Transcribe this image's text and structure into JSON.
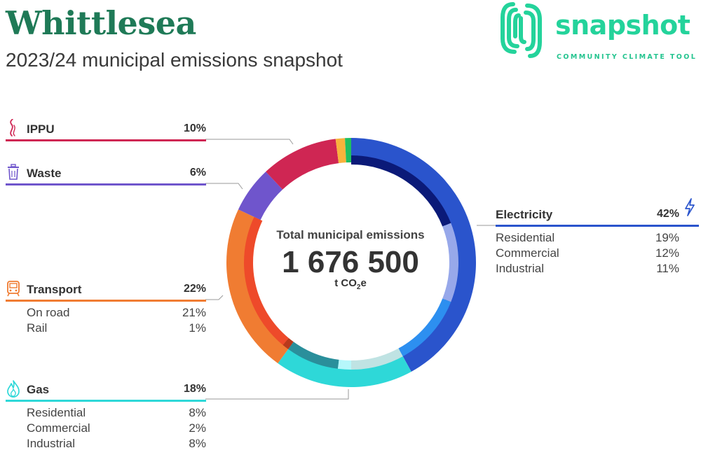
{
  "header": {
    "title": "Whittlesea",
    "subtitle": "2023/24 municipal emissions snapshot"
  },
  "logo": {
    "wordmark": "snapshot",
    "tagline": "COMMUNITY CLIMATE TOOL"
  },
  "center": {
    "label": "Total municipal emissions",
    "value": "1 676 500",
    "unit_prefix": "t CO",
    "unit_sub": "2",
    "unit_suffix": "e"
  },
  "categories": {
    "ippu": {
      "name": "IPPU",
      "pct": "10%",
      "color": "#cf2653",
      "icon": "smoke-icon"
    },
    "waste": {
      "name": "Waste",
      "pct": "6%",
      "color": "#6f55cc",
      "icon": "bin-icon"
    },
    "transport": {
      "name": "Transport",
      "pct": "22%",
      "color": "#f07c32",
      "icon": "train-icon",
      "subs": [
        {
          "label": "On road",
          "pct": "21%"
        },
        {
          "label": "Rail",
          "pct": "1%"
        }
      ]
    },
    "gas": {
      "name": "Gas",
      "pct": "18%",
      "color": "#2ed8d8",
      "icon": "flame-icon",
      "subs": [
        {
          "label": "Residential",
          "pct": "8%"
        },
        {
          "label": "Commercial",
          "pct": "2%"
        },
        {
          "label": "Industrial",
          "pct": "8%"
        }
      ]
    },
    "electricity": {
      "name": "Electricity",
      "pct": "42%",
      "color": "#2a54cc",
      "icon": "lightning-icon",
      "subs": [
        {
          "label": "Residential",
          "pct": "19%"
        },
        {
          "label": "Commercial",
          "pct": "12%"
        },
        {
          "label": "Industrial",
          "pct": "11%"
        }
      ]
    }
  },
  "chart_data": {
    "type": "pie",
    "title": "Total municipal emissions",
    "total": 1676500,
    "unit": "t CO2e",
    "series": [
      {
        "name": "sectors",
        "ring": "outer",
        "slices": [
          {
            "label": "Electricity",
            "value": 42,
            "color": "#2a54cc"
          },
          {
            "label": "Gas",
            "value": 18,
            "color": "#2ed8d8"
          },
          {
            "label": "Transport",
            "value": 22,
            "color": "#f07c32"
          },
          {
            "label": "Waste",
            "value": 6,
            "color": "#6f55cc"
          },
          {
            "label": "IPPU",
            "value": 10,
            "color": "#cf2653"
          },
          {
            "label": "",
            "value": 1.2,
            "color": "#f8b33c"
          },
          {
            "label": "",
            "value": 0.8,
            "color": "#1fbf62"
          }
        ]
      },
      {
        "name": "subsectors",
        "ring": "inner",
        "slices": [
          {
            "label": "Electricity Residential",
            "value": 19,
            "color": "#0b1a78"
          },
          {
            "label": "Electricity Commercial",
            "value": 12,
            "color": "#97a8ea"
          },
          {
            "label": "Electricity Industrial",
            "value": 11,
            "color": "#2d8ff0"
          },
          {
            "label": "Gas Residential",
            "value": 8,
            "color": "#bfe3e3"
          },
          {
            "label": "Gas Commercial",
            "value": 2,
            "color": "#b6f7fb"
          },
          {
            "label": "Gas Industrial",
            "value": 8,
            "color": "#2a8f9b"
          },
          {
            "label": "Transport Rail",
            "value": 1,
            "color": "#b83a1c"
          },
          {
            "label": "Transport On road",
            "value": 21,
            "color": "#ee4a2a"
          },
          {
            "label": "",
            "value": 18,
            "color": "none"
          }
        ]
      }
    ]
  }
}
